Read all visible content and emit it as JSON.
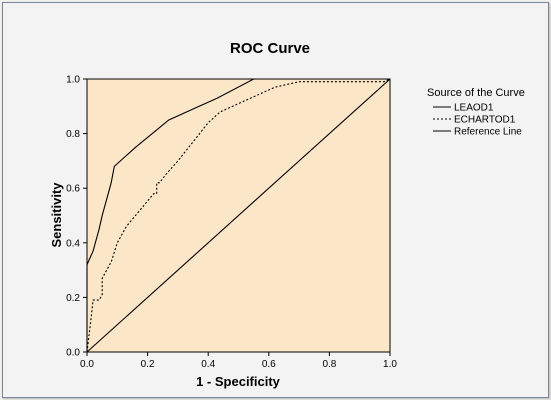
{
  "chart_data": {
    "type": "line",
    "title": "ROC Curve",
    "xlabel": "1 - Specificity",
    "ylabel": "Sensitivity",
    "xlim": [
      0.0,
      1.0
    ],
    "ylim": [
      0.0,
      1.0
    ],
    "xticks": [
      "0.0",
      "0.2",
      "0.4",
      "0.6",
      "0.8",
      "1.0"
    ],
    "yticks": [
      "0.0",
      "0.2",
      "0.4",
      "0.6",
      "0.8",
      "1.0"
    ],
    "grid": false,
    "legend_title": "Source of the Curve",
    "legend_position": "right",
    "plot_background": "#fbe6c8",
    "series": [
      {
        "name": "LEAOD1",
        "style": "solid",
        "x": [
          0.0,
          0.0,
          0.02,
          0.04,
          0.05,
          0.06,
          0.07,
          0.08,
          0.09,
          0.16,
          0.27,
          0.35,
          0.43,
          0.55,
          1.0
        ],
        "y": [
          0.0,
          0.32,
          0.37,
          0.45,
          0.5,
          0.54,
          0.58,
          0.62,
          0.68,
          0.75,
          0.85,
          0.89,
          0.93,
          1.0,
          1.0
        ]
      },
      {
        "name": "ECHARTOD1",
        "style": "dashed",
        "x": [
          0.0,
          0.01,
          0.02,
          0.02,
          0.03,
          0.04,
          0.05,
          0.05,
          0.06,
          0.08,
          0.1,
          0.13,
          0.16,
          0.19,
          0.22,
          0.23,
          0.23,
          0.24,
          0.26,
          0.3,
          0.35,
          0.4,
          0.44,
          0.5,
          0.56,
          0.62,
          0.7,
          0.98,
          1.0
        ],
        "y": [
          0.0,
          0.09,
          0.19,
          0.19,
          0.19,
          0.19,
          0.21,
          0.27,
          0.29,
          0.33,
          0.4,
          0.46,
          0.5,
          0.54,
          0.58,
          0.58,
          0.62,
          0.62,
          0.65,
          0.7,
          0.77,
          0.84,
          0.88,
          0.91,
          0.94,
          0.97,
          0.99,
          0.99,
          1.0
        ]
      },
      {
        "name": "Reference Line",
        "style": "solid",
        "x": [
          0.0,
          1.0
        ],
        "y": [
          0.0,
          1.0
        ]
      }
    ]
  }
}
